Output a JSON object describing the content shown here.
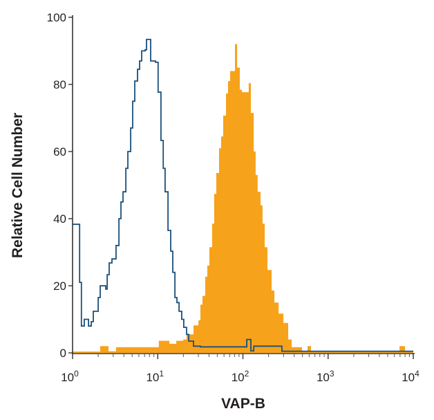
{
  "chart_data": {
    "type": "histogram",
    "title": "",
    "xlabel": "VAP-B",
    "ylabel": "Relative Cell Number",
    "xscale": "log",
    "xlim": [
      1,
      10000
    ],
    "ylim": [
      0,
      100
    ],
    "xticks": [
      {
        "base": "10",
        "exp": "0",
        "value": 1
      },
      {
        "base": "10",
        "exp": "1",
        "value": 10
      },
      {
        "base": "10",
        "exp": "2",
        "value": 100
      },
      {
        "base": "10",
        "exp": "3",
        "value": 1000
      },
      {
        "base": "10",
        "exp": "4",
        "value": 10000
      }
    ],
    "yticks": [
      "0",
      "20",
      "40",
      "60",
      "80",
      "100"
    ],
    "grid": false,
    "series": [
      {
        "style": "filled",
        "color": "#F7A21B",
        "bins": [
          [
            1.0,
            0.4
          ],
          [
            2.11,
            2
          ],
          [
            2.64,
            0.5
          ],
          [
            3.24,
            1.7
          ],
          [
            10.3,
            3.6
          ],
          [
            13.7,
            2.7
          ],
          [
            16.5,
            3.6
          ],
          [
            19.9,
            4
          ],
          [
            21.8,
            5.5
          ],
          [
            26.3,
            8.2
          ],
          [
            30.0,
            9.7
          ],
          [
            31.7,
            14.4
          ],
          [
            33.5,
            17
          ],
          [
            36.1,
            22.7
          ],
          [
            38.2,
            26
          ],
          [
            40.4,
            31.5
          ],
          [
            43.5,
            38.5
          ],
          [
            46.0,
            47.4
          ],
          [
            48.7,
            53.6
          ],
          [
            52.5,
            61
          ],
          [
            55.5,
            64.5
          ],
          [
            58.7,
            70.7
          ],
          [
            63.3,
            77.3
          ],
          [
            66.9,
            81
          ],
          [
            70.8,
            84
          ],
          [
            80.7,
            92
          ],
          [
            85.4,
            85
          ],
          [
            92.0,
            78.4
          ],
          [
            97.3,
            77.7
          ],
          [
            117,
            80.4
          ],
          [
            124,
            71.5
          ],
          [
            134,
            60
          ],
          [
            141,
            53
          ],
          [
            149,
            48
          ],
          [
            161,
            44
          ],
          [
            170,
            38.5
          ],
          [
            180,
            31.5
          ],
          [
            194,
            24.7
          ],
          [
            217,
            18.6
          ],
          [
            234,
            15
          ],
          [
            262,
            11.7
          ],
          [
            299,
            8.9
          ],
          [
            340,
            4
          ],
          [
            373,
            1.7
          ],
          [
            494,
            0.6
          ],
          [
            574,
            2
          ],
          [
            630,
            0.3
          ],
          [
            6890,
            2
          ],
          [
            8000,
            0.3
          ],
          [
            10000,
            0.3
          ]
        ]
      },
      {
        "style": "outline",
        "color": "#1A4F7A",
        "bins": [
          [
            1.0,
            38.3
          ],
          [
            1.21,
            21
          ],
          [
            1.27,
            8
          ],
          [
            1.37,
            10
          ],
          [
            1.54,
            8
          ],
          [
            1.66,
            9.3
          ],
          [
            1.75,
            12.4
          ],
          [
            2.0,
            16.5
          ],
          [
            2.11,
            20
          ],
          [
            2.45,
            19
          ],
          [
            2.55,
            23.3
          ],
          [
            2.69,
            26.8
          ],
          [
            2.9,
            28
          ],
          [
            3.24,
            32
          ],
          [
            3.5,
            40
          ],
          [
            3.7,
            45
          ],
          [
            3.91,
            48
          ],
          [
            4.22,
            55
          ],
          [
            4.46,
            60
          ],
          [
            4.81,
            67
          ],
          [
            5.08,
            75
          ],
          [
            5.37,
            81
          ],
          [
            5.79,
            84.5
          ],
          [
            6.12,
            87
          ],
          [
            6.48,
            90
          ],
          [
            7.11,
            90.3
          ],
          [
            7.38,
            93.4
          ],
          [
            8.26,
            87
          ],
          [
            9.41,
            86.6
          ],
          [
            10.1,
            77.7
          ],
          [
            10.9,
            63.3
          ],
          [
            11.6,
            55
          ],
          [
            12.2,
            48
          ],
          [
            13.2,
            36.5
          ],
          [
            14.2,
            30.3
          ],
          [
            15.0,
            24
          ],
          [
            15.9,
            16.5
          ],
          [
            16.8,
            15
          ],
          [
            17.8,
            12.4
          ],
          [
            19.1,
            10
          ],
          [
            20.2,
            7.6
          ],
          [
            21.8,
            5.5
          ],
          [
            23.1,
            3.5
          ],
          [
            26.3,
            2
          ],
          [
            31.7,
            1.8
          ],
          [
            111,
            4
          ],
          [
            124,
            0.6
          ],
          [
            134,
            2
          ],
          [
            164,
            2
          ],
          [
            287,
            0.5
          ],
          [
            10000,
            0.5
          ]
        ]
      }
    ]
  }
}
